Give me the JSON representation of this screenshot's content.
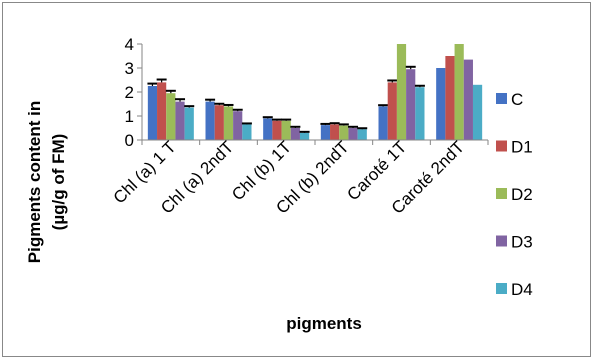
{
  "chart_data": {
    "type": "bar",
    "title": "",
    "xlabel": "pigments",
    "ylabel_line1": "Pigments content in",
    "ylabel_line2": "(µg/g of FM)",
    "ylim": [
      0,
      4
    ],
    "yticks": [
      "0",
      "1",
      "2",
      "3",
      "4"
    ],
    "categories": [
      "Chl (a)  1 T",
      "Chl (a) 2ndT",
      "Chl (b) 1T",
      "Chl (b) 2ndT",
      "Caroté 1T",
      "Caroté 2ndT"
    ],
    "legend_position": "right",
    "series": [
      {
        "name": "C",
        "color": "#4472C4",
        "values": [
          2.25,
          1.6,
          0.9,
          0.62,
          1.4,
          3.0
        ],
        "errors": [
          0.1,
          0.08,
          0.05,
          0.05,
          0.05,
          0
        ]
      },
      {
        "name": "D1",
        "color": "#C0504D",
        "values": [
          2.4,
          1.45,
          0.8,
          0.65,
          2.4,
          3.5
        ],
        "errors": [
          0.12,
          0.06,
          0.05,
          0.05,
          0.08,
          0
        ]
      },
      {
        "name": "D2",
        "color": "#9BBB59",
        "values": [
          1.95,
          1.4,
          0.8,
          0.6,
          4.0,
          4.0
        ],
        "errors": [
          0.1,
          0.06,
          0.05,
          0.05,
          0,
          0
        ]
      },
      {
        "name": "D3",
        "color": "#8064A2",
        "values": [
          1.6,
          1.2,
          0.5,
          0.5,
          2.95,
          3.35
        ],
        "errors": [
          0.1,
          0.06,
          0.05,
          0.05,
          0.1,
          0
        ]
      },
      {
        "name": "D4",
        "color": "#4BACC6",
        "values": [
          1.35,
          0.65,
          0.3,
          0.45,
          2.2,
          2.3
        ],
        "errors": [
          0.06,
          0.04,
          0.04,
          0.04,
          0.06,
          0
        ]
      }
    ]
  }
}
